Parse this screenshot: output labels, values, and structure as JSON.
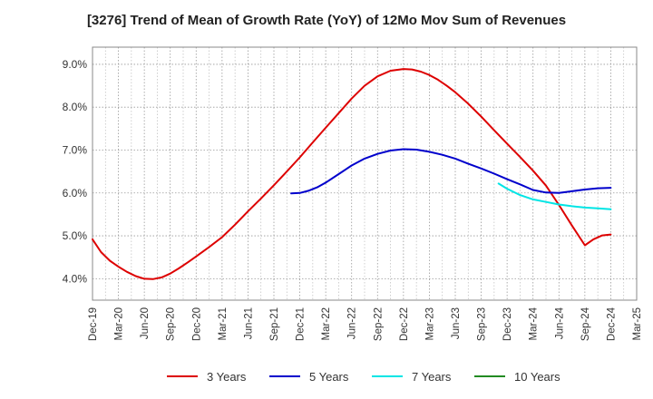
{
  "chart_data": {
    "type": "line",
    "title": "[3276]  Trend of Mean of Growth Rate (YoY) of 12Mo Mov Sum of Revenues",
    "xlabel": "",
    "ylabel": "",
    "categories": [
      "Dec-19",
      "Mar-20",
      "Jun-20",
      "Sep-20",
      "Dec-20",
      "Mar-21",
      "Jun-21",
      "Sep-21",
      "Dec-21",
      "Mar-22",
      "Jun-22",
      "Sep-22",
      "Dec-22",
      "Mar-23",
      "Jun-23",
      "Sep-23",
      "Dec-23",
      "Mar-24",
      "Jun-24",
      "Sep-24",
      "Dec-24",
      "Mar-25"
    ],
    "ylim": [
      3.5,
      9.4
    ],
    "yticks": [
      4.0,
      5.0,
      6.0,
      7.0,
      8.0,
      9.0
    ],
    "ytick_labels": [
      "4.0%",
      "5.0%",
      "6.0%",
      "7.0%",
      "8.0%",
      "9.0%"
    ],
    "grid": true,
    "legend_position": "bottom",
    "series": [
      {
        "name": "3 Years",
        "color": "#dd0000",
        "x": [
          0,
          0.33,
          0.67,
          1,
          1.33,
          1.67,
          2,
          2.33,
          2.67,
          3,
          3.33,
          3.67,
          4,
          4.5,
          5,
          5.5,
          6,
          6.5,
          7,
          7.5,
          8,
          8.5,
          9,
          9.5,
          10,
          10.5,
          11,
          11.5,
          12,
          12.33,
          12.67,
          13,
          13.33,
          13.67,
          14,
          14.5,
          15,
          15.5,
          16,
          16.5,
          17,
          17.5,
          18,
          18.5,
          19,
          19.33,
          19.67,
          20
        ],
        "y": [
          4.92,
          4.62,
          4.42,
          4.28,
          4.16,
          4.06,
          4.0,
          3.99,
          4.03,
          4.12,
          4.24,
          4.38,
          4.52,
          4.74,
          4.97,
          5.26,
          5.57,
          5.87,
          6.18,
          6.5,
          6.83,
          7.18,
          7.52,
          7.86,
          8.2,
          8.5,
          8.72,
          8.85,
          8.89,
          8.88,
          8.83,
          8.75,
          8.64,
          8.5,
          8.35,
          8.08,
          7.78,
          7.46,
          7.15,
          6.84,
          6.52,
          6.17,
          5.72,
          5.24,
          4.78,
          4.92,
          5.01,
          5.03
        ]
      },
      {
        "name": "5 Years",
        "color": "#0000cc",
        "x": [
          7.67,
          8,
          8.33,
          8.67,
          9,
          9.5,
          10,
          10.5,
          11,
          11.5,
          12,
          12.5,
          13,
          13.5,
          14,
          14.5,
          15,
          15.5,
          16,
          16.5,
          17,
          17.5,
          18,
          18.5,
          19,
          19.5,
          20
        ],
        "y": [
          5.99,
          6.0,
          6.05,
          6.13,
          6.24,
          6.44,
          6.64,
          6.8,
          6.91,
          6.99,
          7.02,
          7.01,
          6.96,
          6.89,
          6.8,
          6.68,
          6.57,
          6.45,
          6.32,
          6.2,
          6.07,
          6.01,
          6.0,
          6.04,
          6.08,
          6.11,
          6.12
        ]
      },
      {
        "name": "7 Years",
        "color": "#00e5e5",
        "x": [
          15.67,
          16,
          16.5,
          17,
          17.5,
          18,
          18.5,
          19,
          19.5,
          20
        ],
        "y": [
          6.22,
          6.1,
          5.95,
          5.85,
          5.79,
          5.73,
          5.69,
          5.66,
          5.64,
          5.62
        ]
      },
      {
        "name": "10 Years",
        "color": "#228b22",
        "x": [],
        "y": []
      }
    ]
  }
}
